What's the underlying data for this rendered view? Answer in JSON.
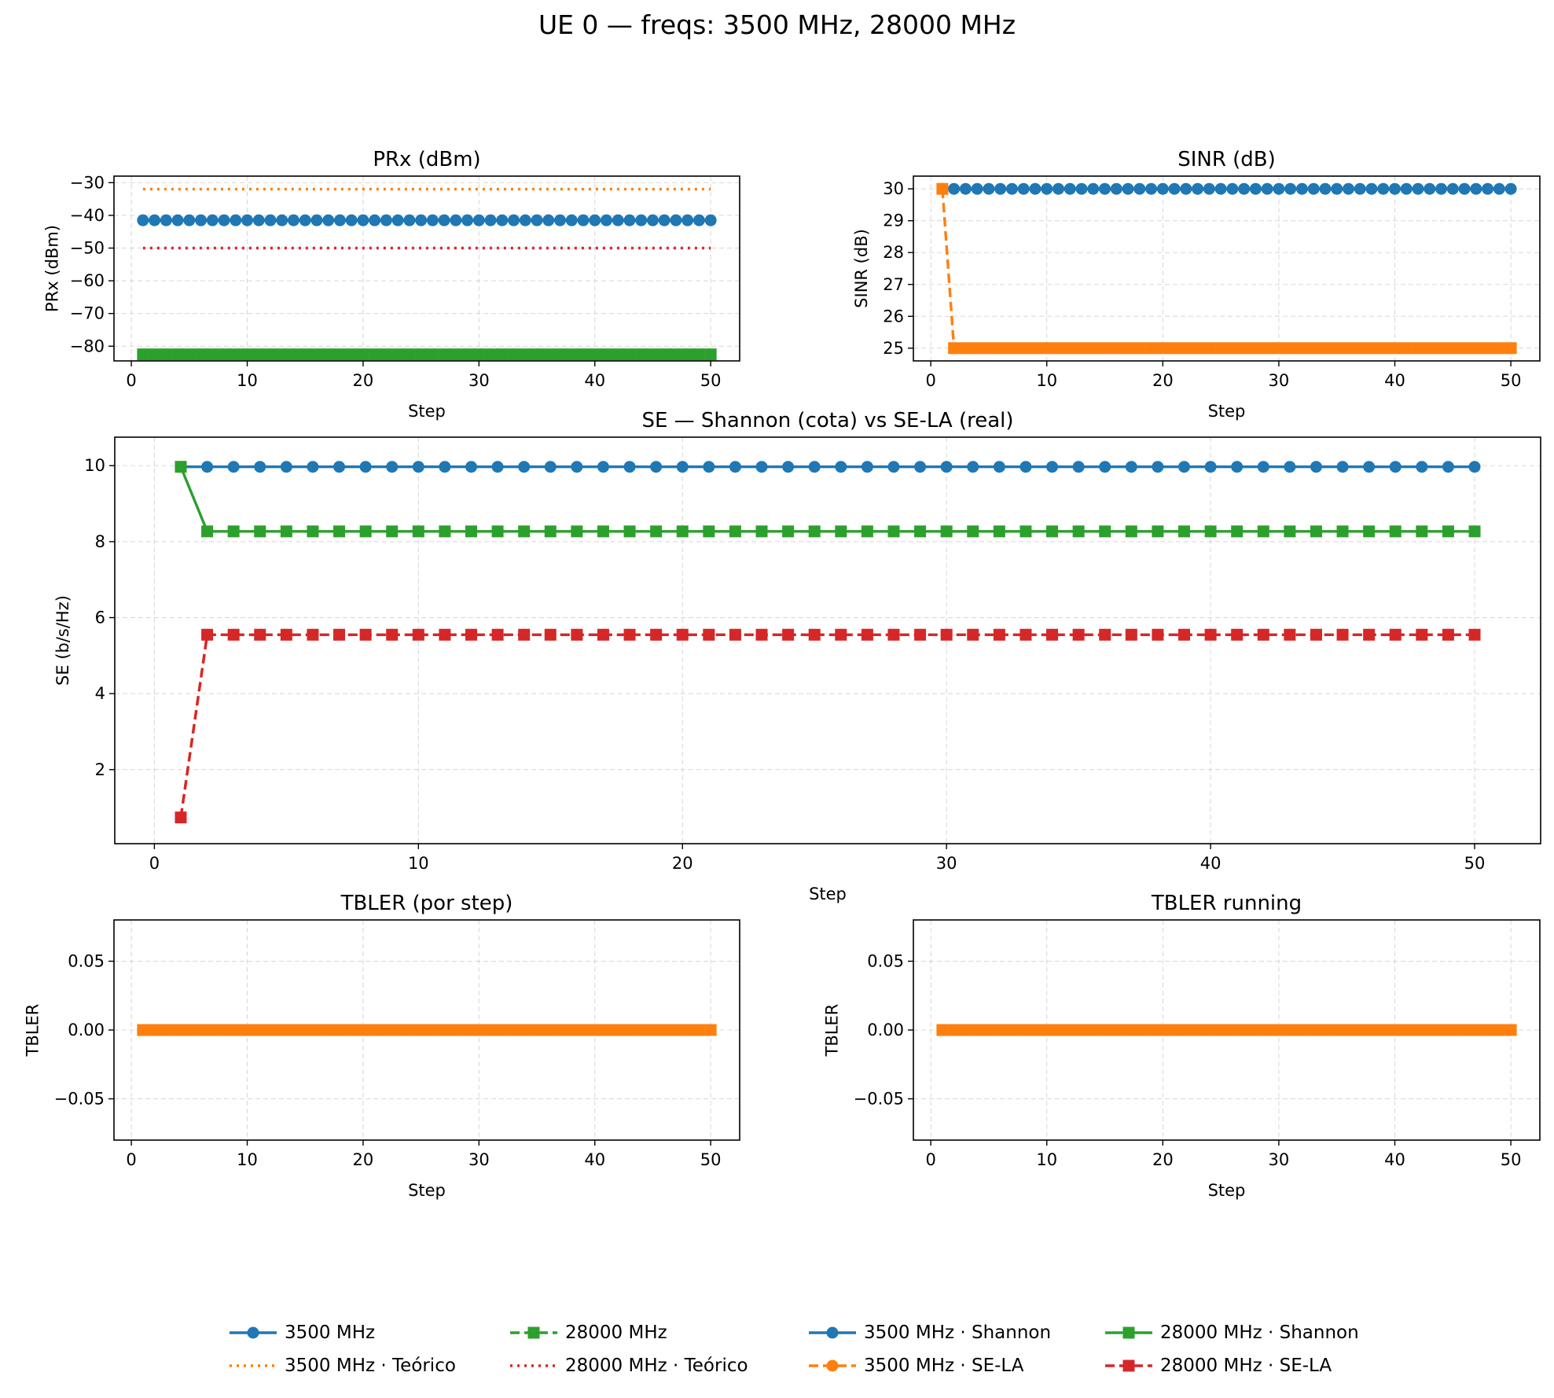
{
  "figure": {
    "title": "UE 0 — freqs: 3500 MHz, 28000 MHz"
  },
  "colors": {
    "blue": "#1f77b4",
    "orange": "#ff7f0e",
    "green": "#2ca02c",
    "red": "#d62728"
  },
  "legend": {
    "items": [
      {
        "label": "3500 MHz",
        "color": "#1f77b4",
        "linestyle": "solid",
        "marker": "circle"
      },
      {
        "label": "3500 MHz · Teórico",
        "color": "#ff7f0e",
        "linestyle": "dotted",
        "marker": "none"
      },
      {
        "label": "28000 MHz",
        "color": "#2ca02c",
        "linestyle": "dashed",
        "marker": "square"
      },
      {
        "label": "28000 MHz · Teórico",
        "color": "#d62728",
        "linestyle": "dotted",
        "marker": "none"
      },
      {
        "label": "3500 MHz · Shannon",
        "color": "#1f77b4",
        "linestyle": "solid",
        "marker": "circle"
      },
      {
        "label": "3500 MHz · SE-LA",
        "color": "#ff7f0e",
        "linestyle": "dashed",
        "marker": "circle"
      },
      {
        "label": "28000 MHz · Shannon",
        "color": "#2ca02c",
        "linestyle": "solid",
        "marker": "square"
      },
      {
        "label": "28000 MHz · SE-LA",
        "color": "#d62728",
        "linestyle": "dashed",
        "marker": "square"
      }
    ]
  },
  "chart_data": [
    {
      "id": "prx",
      "type": "line",
      "title": "PRx (dBm)",
      "xlabel": "Step",
      "ylabel": "PRx (dBm)",
      "xlim": [
        -1.5,
        52.5
      ],
      "ylim": [
        -84.5,
        -28
      ],
      "xticks": [
        0,
        10,
        20,
        30,
        40,
        50
      ],
      "yticks": [
        -80,
        -70,
        -60,
        -50,
        -40,
        -30
      ],
      "grid": true,
      "x": {
        "start": 1,
        "end": 50,
        "step": 1
      },
      "series": [
        {
          "name": "3500 MHz",
          "color": "#1f77b4",
          "linestyle": "solid",
          "marker": "circle",
          "values": {
            "constant": -41.5
          }
        },
        {
          "name": "3500 MHz · Teórico",
          "color": "#ff7f0e",
          "linestyle": "dotted",
          "marker": "none",
          "values": {
            "constant": -32
          }
        },
        {
          "name": "28000 MHz",
          "color": "#2ca02c",
          "linestyle": "dashed",
          "marker": "square",
          "values": {
            "constant": -82.5
          }
        },
        {
          "name": "28000 MHz · Teórico",
          "color": "#d62728",
          "linestyle": "dotted",
          "marker": "none",
          "values": {
            "constant": -50
          }
        }
      ]
    },
    {
      "id": "sinr",
      "type": "line",
      "title": "SINR (dB)",
      "xlabel": "Step",
      "ylabel": "SINR (dB)",
      "xlim": [
        -1.5,
        52.5
      ],
      "ylim": [
        24.6,
        30.4
      ],
      "xticks": [
        0,
        10,
        20,
        30,
        40,
        50
      ],
      "yticks": [
        25,
        26,
        27,
        28,
        29,
        30
      ],
      "grid": true,
      "x": {
        "start": 1,
        "end": 50,
        "step": 1
      },
      "series": [
        {
          "name": "3500 MHz",
          "color": "#1f77b4",
          "linestyle": "solid",
          "marker": "circle",
          "values": {
            "constant": 30
          }
        },
        {
          "name": "28000 MHz",
          "color": "#ff7f0e",
          "linestyle": "dashed",
          "marker": "square",
          "values": {
            "first": 30,
            "rest": 25
          }
        }
      ]
    },
    {
      "id": "se",
      "type": "line",
      "title": "SE — Shannon (cota) vs SE-LA (real)",
      "xlabel": "Step",
      "ylabel": "SE (b/s/Hz)",
      "xlim": [
        -1.5,
        52.5
      ],
      "ylim": [
        0.05,
        10.75
      ],
      "xticks": [
        0,
        10,
        20,
        30,
        40,
        50
      ],
      "yticks": [
        2,
        4,
        6,
        8,
        10
      ],
      "grid": true,
      "x": {
        "start": 1,
        "end": 50,
        "step": 1
      },
      "series": [
        {
          "name": "3500 MHz · Shannon",
          "color": "#1f77b4",
          "linestyle": "solid",
          "marker": "circle",
          "values": {
            "constant": 9.97
          }
        },
        {
          "name": "3500 MHz · SE-LA",
          "color": "#ff7f0e",
          "linestyle": "dashed",
          "marker": "circle",
          "values": {
            "first": 0.74,
            "rest": 5.55
          }
        },
        {
          "name": "28000 MHz · Shannon",
          "color": "#2ca02c",
          "linestyle": "solid",
          "marker": "square",
          "values": {
            "first": 9.97,
            "rest": 8.27
          }
        },
        {
          "name": "28000 MHz · SE-LA",
          "color": "#d62728",
          "linestyle": "dashed",
          "marker": "square",
          "values": {
            "first": 0.74,
            "rest": 5.55
          }
        }
      ]
    },
    {
      "id": "tbler",
      "type": "line",
      "title": "TBLER (por step)",
      "xlabel": "Step",
      "ylabel": "TBLER",
      "xlim": [
        -1.5,
        52.5
      ],
      "ylim": [
        -0.08,
        0.08
      ],
      "xticks": [
        0,
        10,
        20,
        30,
        40,
        50
      ],
      "yticks": [
        -0.05,
        0.0,
        0.05
      ],
      "ytickLabels": [
        "−0.05",
        "0.00",
        "0.05"
      ],
      "grid": true,
      "x": {
        "start": 1,
        "end": 50,
        "step": 1
      },
      "series": [
        {
          "name": "3500 MHz",
          "color": "#1f77b4",
          "linestyle": "solid",
          "marker": "circle",
          "values": {
            "constant": 0
          }
        },
        {
          "name": "28000 MHz",
          "color": "#ff7f0e",
          "linestyle": "dashed",
          "marker": "square",
          "values": {
            "constant": 0
          }
        }
      ]
    },
    {
      "id": "tbler_running",
      "type": "line",
      "title": "TBLER running",
      "xlabel": "Step",
      "ylabel": "TBLER",
      "xlim": [
        -1.5,
        52.5
      ],
      "ylim": [
        -0.08,
        0.08
      ],
      "xticks": [
        0,
        10,
        20,
        30,
        40,
        50
      ],
      "yticks": [
        -0.05,
        0.0,
        0.05
      ],
      "ytickLabels": [
        "−0.05",
        "0.00",
        "0.05"
      ],
      "grid": true,
      "x": {
        "start": 1,
        "end": 50,
        "step": 1
      },
      "series": [
        {
          "name": "3500 MHz",
          "color": "#1f77b4",
          "linestyle": "solid",
          "marker": "circle",
          "values": {
            "constant": 0
          }
        },
        {
          "name": "28000 MHz",
          "color": "#ff7f0e",
          "linestyle": "dashed",
          "marker": "square",
          "values": {
            "constant": 0
          }
        }
      ]
    }
  ]
}
